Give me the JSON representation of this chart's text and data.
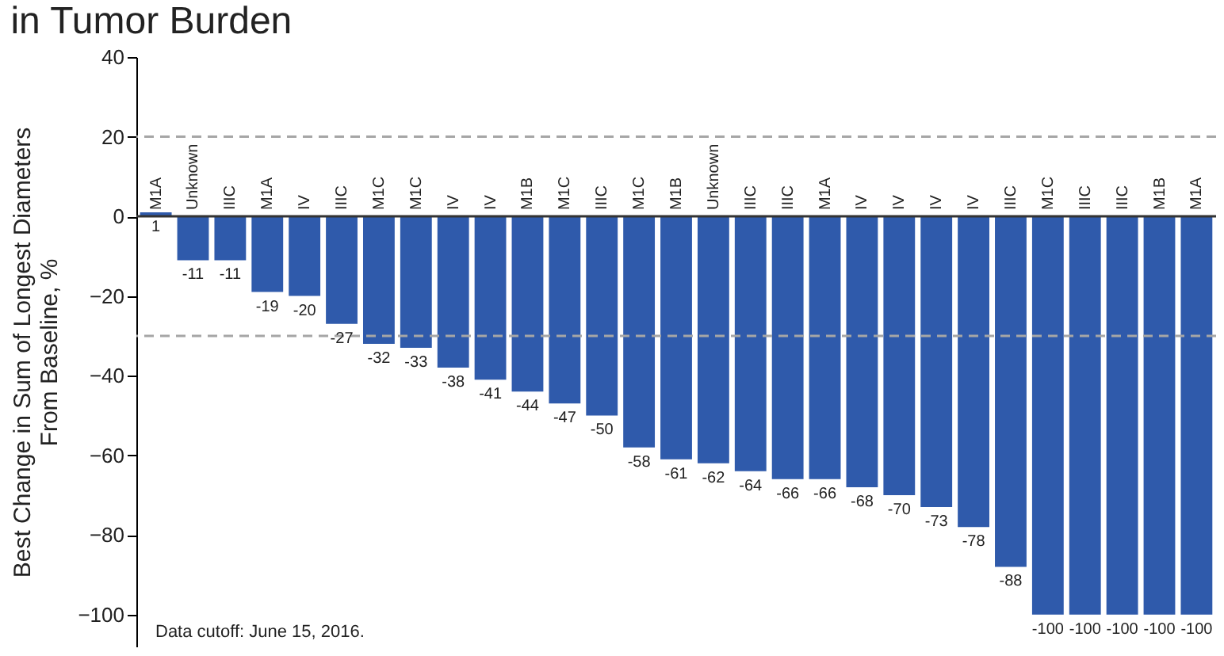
{
  "chart_data": {
    "type": "bar",
    "title": "in Tumor Burden",
    "ylabel": "Best Change in Sum of Longest Diameters\nFrom Baseline, %",
    "categories": [
      "M1A",
      "Unknown",
      "IIIC",
      "M1A",
      "IV",
      "IIIC",
      "M1C",
      "M1C",
      "IV",
      "IV",
      "M1B",
      "M1C",
      "IIIC",
      "M1C",
      "M1B",
      "Unknown",
      "IIIC",
      "IIIC",
      "M1A",
      "IV",
      "IV",
      "IV",
      "IV",
      "IIIC",
      "M1C",
      "IIIC",
      "IIIC",
      "M1B",
      "M1A"
    ],
    "values": [
      1,
      -11,
      -11,
      -19,
      -20,
      -27,
      -32,
      -33,
      -38,
      -41,
      -44,
      -47,
      -50,
      -58,
      -61,
      -62,
      -64,
      -66,
      -66,
      -68,
      -70,
      -73,
      -78,
      -88,
      -100,
      -100,
      -100,
      -100,
      -100
    ],
    "color": "#2f5aab",
    "data_labels": true,
    "ylim": [
      -108,
      40
    ],
    "yticks": [
      40,
      20,
      0,
      -20,
      -40,
      -60,
      -80,
      -100
    ],
    "ref_lines": [
      {
        "axis": "y",
        "value": 20,
        "color": "#a6a6a6",
        "line_style": "dashed"
      },
      {
        "axis": "y",
        "value": -30,
        "color": "#a6a6a6",
        "line_style": "dashed"
      }
    ],
    "annotations": [
      "Data cutoff: June 15, 2016."
    ]
  }
}
